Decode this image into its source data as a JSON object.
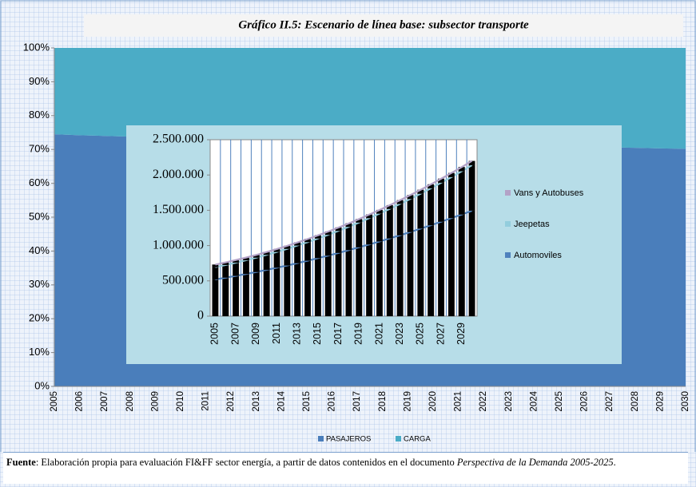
{
  "chart_data": [
    {
      "type": "area",
      "title": "Gráfico II.5: Escenario de línea base: subsector transporte",
      "categories": [
        "2005",
        "2006",
        "2007",
        "2008",
        "2009",
        "2010",
        "2011",
        "2012",
        "2013",
        "2014",
        "2015",
        "2016",
        "2017",
        "2018",
        "2019",
        "2020",
        "2021",
        "2022",
        "2023",
        "2024",
        "2025",
        "2026",
        "2027",
        "2028",
        "2029",
        "2030"
      ],
      "series": [
        {
          "name": "PASAJEROS",
          "color": "#4a7ebb",
          "values": [
            74.5,
            74.2,
            74.0,
            73.8,
            73.6,
            73.4,
            73.2,
            73.0,
            72.8,
            72.6,
            72.4,
            72.2,
            72.0,
            71.8,
            71.6,
            71.5,
            71.4,
            71.2,
            71.0,
            70.9,
            70.8,
            70.7,
            70.6,
            70.5,
            70.3,
            70.2
          ]
        },
        {
          "name": "CARGA",
          "color": "#4bacc6",
          "values": [
            25.5,
            25.8,
            26.0,
            26.2,
            26.4,
            26.6,
            26.8,
            27.0,
            27.2,
            27.4,
            27.6,
            27.8,
            28.0,
            28.2,
            28.4,
            28.5,
            28.6,
            28.8,
            29.0,
            29.1,
            29.2,
            29.3,
            29.4,
            29.5,
            29.7,
            29.8
          ]
        }
      ],
      "ylim": [
        0,
        100
      ],
      "yticks": [
        {
          "value": 0,
          "label": "0%"
        },
        {
          "value": 10,
          "label": "10%"
        },
        {
          "value": 20,
          "label": "20%"
        },
        {
          "value": 30,
          "label": "30%"
        },
        {
          "value": 40,
          "label": "40%"
        },
        {
          "value": 50,
          "label": "50%"
        },
        {
          "value": 60,
          "label": "60%"
        },
        {
          "value": 70,
          "label": "70%"
        },
        {
          "value": 80,
          "label": "80%"
        },
        {
          "value": 90,
          "label": "90%"
        },
        {
          "value": 100,
          "label": "100%"
        }
      ],
      "stacked": true,
      "legend": "bottom"
    },
    {
      "type": "bar",
      "categories": [
        "2005",
        null,
        "2007",
        null,
        "2009",
        null,
        "2011",
        null,
        "2013",
        null,
        "2015",
        null,
        "2017",
        null,
        "2019",
        null,
        "2021",
        null,
        "2023",
        null,
        "2025",
        null,
        "2027",
        null,
        "2029",
        null
      ],
      "series": [
        {
          "name": "Automoviles",
          "color": "#4f81bd",
          "values": [
            520000,
            545000,
            571000,
            598000,
            626000,
            656000,
            687000,
            718000,
            751000,
            786000,
            822000,
            858000,
            896000,
            936000,
            976000,
            1016000,
            1058000,
            1102000,
            1146000,
            1192000,
            1240000,
            1288000,
            1338000,
            1390000,
            1440000,
            1494000
          ]
        },
        {
          "name": "Jeepetas",
          "color": "#93cddd",
          "values": [
            175000,
            180000,
            187000,
            194000,
            203000,
            213000,
            223000,
            236000,
            250000,
            263000,
            278000,
            295000,
            313000,
            330000,
            350000,
            373000,
            395000,
            418000,
            444000,
            469000,
            495000,
            523000,
            552000,
            580000,
            613000,
            645000
          ]
        },
        {
          "name": "Vans y Autobuses",
          "color": "#b3a2c7",
          "values": [
            35000,
            36000,
            37000,
            38000,
            39000,
            40000,
            41000,
            42000,
            43000,
            44000,
            45000,
            46000,
            47000,
            48000,
            49000,
            50000,
            51000,
            52000,
            53000,
            54000,
            55000,
            56000,
            57000,
            58000,
            59000,
            60000
          ]
        }
      ],
      "bar_color": "#000000",
      "ylim": [
        0,
        2500000
      ],
      "yticks": [
        0,
        {
          "value": 500000,
          "label": "500.000"
        },
        {
          "value": 1000000,
          "label": "1.000.000"
        },
        {
          "value": 1500000,
          "label": "1.500.000"
        },
        {
          "value": 2000000,
          "label": "2.000.000"
        },
        {
          "value": 2500000,
          "label": "2.500.000"
        }
      ],
      "stacked": true,
      "grid": true,
      "legend": "right"
    }
  ],
  "footnote": {
    "label": "Fuente",
    "text": ": Elaboración propia para evaluación FI&FF sector energía, a partir de datos contenidos en el documento ",
    "italic": "Perspectiva de la Demanda 2005-2025",
    "end": "."
  }
}
